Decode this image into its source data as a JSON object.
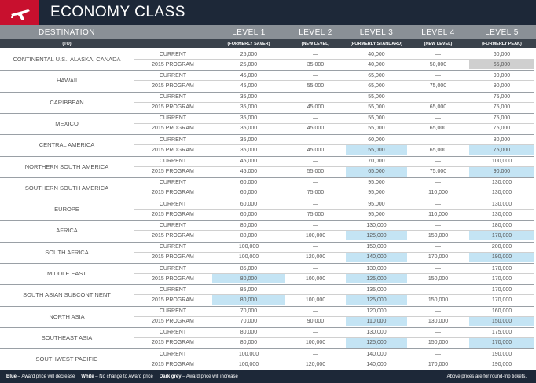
{
  "title": "ECONOMY CLASS",
  "columns": [
    "DESTINATION",
    "LEVEL 1",
    "LEVEL 2",
    "LEVEL 3",
    "LEVEL 4",
    "LEVEL 5"
  ],
  "subcolumns": [
    "(TO)",
    "(FORMERLY SAVER)",
    "(NEW LEVEL)",
    "(FORMERLY STANDARD)",
    "(NEW LEVEL)",
    "(FORMERLY PEAK)"
  ],
  "program_labels": [
    "CURRENT",
    "2015 PROGRAM"
  ],
  "shade_colors": {
    "decrease": "#c4e4f4",
    "increase": "#cfcfcf"
  },
  "rows": [
    {
      "destination": "CONTINENTAL U.S., ALASKA, CANADA",
      "current": [
        "25,000",
        "—",
        "40,000",
        "—",
        "60,000"
      ],
      "program_2015": [
        "25,000",
        "35,000",
        "40,000",
        "50,000",
        "65,000"
      ],
      "decrease_cols": [],
      "increase_cols": [
        4
      ]
    },
    {
      "destination": "HAWAII",
      "current": [
        "45,000",
        "—",
        "65,000",
        "—",
        "90,000"
      ],
      "program_2015": [
        "45,000",
        "55,000",
        "65,000",
        "75,000",
        "90,000"
      ],
      "decrease_cols": [],
      "increase_cols": []
    },
    {
      "destination": "CARIBBEAN",
      "current": [
        "35,000",
        "—",
        "55,000",
        "—",
        "75,000"
      ],
      "program_2015": [
        "35,000",
        "45,000",
        "55,000",
        "65,000",
        "75,000"
      ],
      "decrease_cols": [],
      "increase_cols": []
    },
    {
      "destination": "MEXICO",
      "current": [
        "35,000",
        "—",
        "55,000",
        "—",
        "75,000"
      ],
      "program_2015": [
        "35,000",
        "45,000",
        "55,000",
        "65,000",
        "75,000"
      ],
      "decrease_cols": [],
      "increase_cols": []
    },
    {
      "destination": "CENTRAL AMERICA",
      "current": [
        "35,000",
        "—",
        "60,000",
        "—",
        "80,000"
      ],
      "program_2015": [
        "35,000",
        "45,000",
        "55,000",
        "65,000",
        "75,000"
      ],
      "decrease_cols": [
        2,
        4
      ],
      "increase_cols": []
    },
    {
      "destination": "NORTHERN SOUTH AMERICA",
      "current": [
        "45,000",
        "—",
        "70,000",
        "—",
        "100,000"
      ],
      "program_2015": [
        "45,000",
        "55,000",
        "65,000",
        "75,000",
        "90,000"
      ],
      "decrease_cols": [
        2,
        4
      ],
      "increase_cols": []
    },
    {
      "destination": "SOUTHERN SOUTH AMERICA",
      "current": [
        "60,000",
        "—",
        "95,000",
        "—",
        "130,000"
      ],
      "program_2015": [
        "60,000",
        "75,000",
        "95,000",
        "110,000",
        "130,000"
      ],
      "decrease_cols": [],
      "increase_cols": []
    },
    {
      "destination": "EUROPE",
      "current": [
        "60,000",
        "—",
        "95,000",
        "—",
        "130,000"
      ],
      "program_2015": [
        "60,000",
        "75,000",
        "95,000",
        "110,000",
        "130,000"
      ],
      "decrease_cols": [],
      "increase_cols": []
    },
    {
      "destination": "AFRICA",
      "current": [
        "80,000",
        "—",
        "130,000",
        "—",
        "180,000"
      ],
      "program_2015": [
        "80,000",
        "100,000",
        "125,000",
        "150,000",
        "170,000"
      ],
      "decrease_cols": [
        2,
        4
      ],
      "increase_cols": []
    },
    {
      "destination": "SOUTH AFRICA",
      "current": [
        "100,000",
        "—",
        "150,000",
        "—",
        "200,000"
      ],
      "program_2015": [
        "100,000",
        "120,000",
        "140,000",
        "170,000",
        "190,000"
      ],
      "decrease_cols": [
        2,
        4
      ],
      "increase_cols": []
    },
    {
      "destination": "MIDDLE EAST",
      "current": [
        "85,000",
        "—",
        "130,000",
        "—",
        "170,000"
      ],
      "program_2015": [
        "80,000",
        "100,000",
        "125,000",
        "150,000",
        "170,000"
      ],
      "decrease_cols": [
        0,
        2
      ],
      "increase_cols": []
    },
    {
      "destination": "SOUTH ASIAN SUBCONTINENT",
      "current": [
        "85,000",
        "—",
        "135,000",
        "—",
        "170,000"
      ],
      "program_2015": [
        "80,000",
        "100,000",
        "125,000",
        "150,000",
        "170,000"
      ],
      "decrease_cols": [
        0,
        2
      ],
      "increase_cols": []
    },
    {
      "destination": "NORTH ASIA",
      "current": [
        "70,000",
        "—",
        "120,000",
        "—",
        "160,000"
      ],
      "program_2015": [
        "70,000",
        "90,000",
        "110,000",
        "130,000",
        "150,000"
      ],
      "decrease_cols": [
        2,
        4
      ],
      "increase_cols": []
    },
    {
      "destination": "SOUTHEAST ASIA",
      "current": [
        "80,000",
        "—",
        "130,000",
        "—",
        "175,000"
      ],
      "program_2015": [
        "80,000",
        "100,000",
        "125,000",
        "150,000",
        "170,000"
      ],
      "decrease_cols": [
        2,
        4
      ],
      "increase_cols": []
    },
    {
      "destination": "SOUTHWEST PACIFIC",
      "current": [
        "100,000",
        "—",
        "140,000",
        "—",
        "190,000"
      ],
      "program_2015": [
        "100,000",
        "120,000",
        "140,000",
        "170,000",
        "190,000"
      ],
      "decrease_cols": [],
      "increase_cols": []
    }
  ],
  "legend": [
    {
      "key": "Blue",
      "text": " – Award price will decrease"
    },
    {
      "key": "White",
      "text": " – No change to Award price"
    },
    {
      "key": "Dark grey",
      "text": " – Award price will increase"
    }
  ],
  "note": "Above prices are for round-trip tickets."
}
